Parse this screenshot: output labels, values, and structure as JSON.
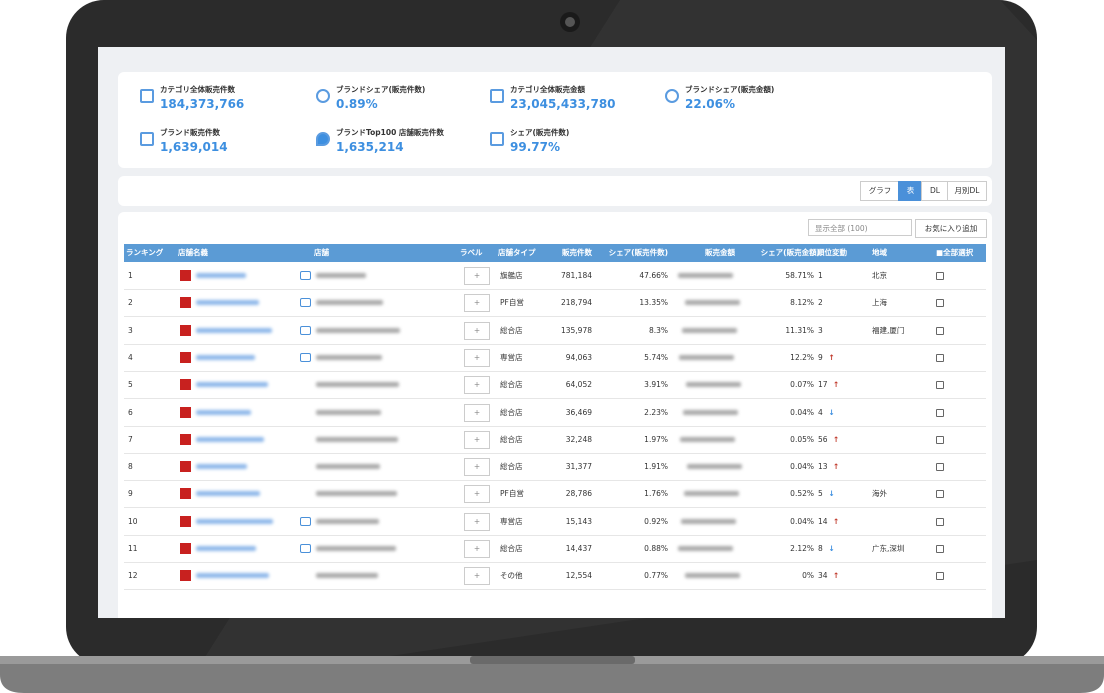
{
  "stats": [
    {
      "label": "カテゴリ全体販売件数",
      "value": "184,373,766"
    },
    {
      "label": "ブランドシェア(販売件数)",
      "value": "0.89%"
    },
    {
      "label": "カテゴリ全体販売金額",
      "value": "23,045,433,780"
    },
    {
      "label": "ブランドシェア(販売金額)",
      "value": "22.06%"
    },
    {
      "label": "ブランド販売件数",
      "value": "1,639,014"
    },
    {
      "label": "ブランドTop100 店舗販売件数",
      "value": "1,635,214"
    },
    {
      "label": "シェア(販売件数)",
      "value": "99.77%"
    }
  ],
  "toolbar": [
    "グラフ",
    "表",
    "DL",
    "月別DL"
  ],
  "display_select": "显示全部 (100)",
  "favorite_button": "お気に入り追加",
  "table": {
    "headers": [
      "ランキング",
      "店舗名義",
      "店舗",
      "ラベル",
      "店舗タイプ",
      "販売件数",
      "シェア(販売件数)",
      "販売金額",
      "シェア(販売金額)",
      "順位変動",
      "地域",
      "■全部選択"
    ],
    "rows": [
      {
        "rank": "1",
        "chat": true,
        "type": "旗艦店",
        "sales": "781,184",
        "share": "47.66%",
        "amount_share": "58.71%",
        "change": "1",
        "arrow": null,
        "region": "北京"
      },
      {
        "rank": "2",
        "chat": true,
        "type": "PF自営",
        "sales": "218,794",
        "share": "13.35%",
        "amount_share": "8.12%",
        "change": "2",
        "arrow": null,
        "region": "上海"
      },
      {
        "rank": "3",
        "chat": true,
        "type": "総合店",
        "sales": "135,978",
        "share": "8.3%",
        "amount_share": "11.31%",
        "change": "3",
        "arrow": null,
        "region": "福建,厦门"
      },
      {
        "rank": "4",
        "chat": true,
        "type": "専営店",
        "sales": "94,063",
        "share": "5.74%",
        "amount_share": "12.2%",
        "change": "9",
        "arrow": "↑",
        "region": null
      },
      {
        "rank": "5",
        "chat": false,
        "type": "総合店",
        "sales": "64,052",
        "share": "3.91%",
        "amount_share": "0.07%",
        "change": "17",
        "arrow": "↑",
        "region": null
      },
      {
        "rank": "6",
        "chat": false,
        "type": "総合店",
        "sales": "36,469",
        "share": "2.23%",
        "amount_share": "0.04%",
        "change": "4",
        "arrow": "↓",
        "region": null
      },
      {
        "rank": "7",
        "chat": false,
        "type": "総合店",
        "sales": "32,248",
        "share": "1.97%",
        "amount_share": "0.05%",
        "change": "56",
        "arrow": "↑",
        "region": null
      },
      {
        "rank": "8",
        "chat": false,
        "type": "総合店",
        "sales": "31,377",
        "share": "1.91%",
        "amount_share": "0.04%",
        "change": "13",
        "arrow": "↑",
        "region": null
      },
      {
        "rank": "9",
        "chat": false,
        "type": "PF自営",
        "sales": "28,786",
        "share": "1.76%",
        "amount_share": "0.52%",
        "change": "5",
        "arrow": "↓",
        "region": "海外"
      },
      {
        "rank": "10",
        "chat": true,
        "type": "専営店",
        "sales": "15,143",
        "share": "0.92%",
        "amount_share": "0.04%",
        "change": "14",
        "arrow": "↑",
        "region": null
      },
      {
        "rank": "11",
        "chat": true,
        "type": "総合店",
        "sales": "14,437",
        "share": "0.88%",
        "amount_share": "2.12%",
        "change": "8",
        "arrow": "↓",
        "region": "广东,深圳"
      },
      {
        "rank": "12",
        "chat": false,
        "type": "その他",
        "sales": "12,554",
        "share": "0.77%",
        "amount_share": "0%",
        "change": "34",
        "arrow": "↑",
        "region": null
      }
    ]
  }
}
